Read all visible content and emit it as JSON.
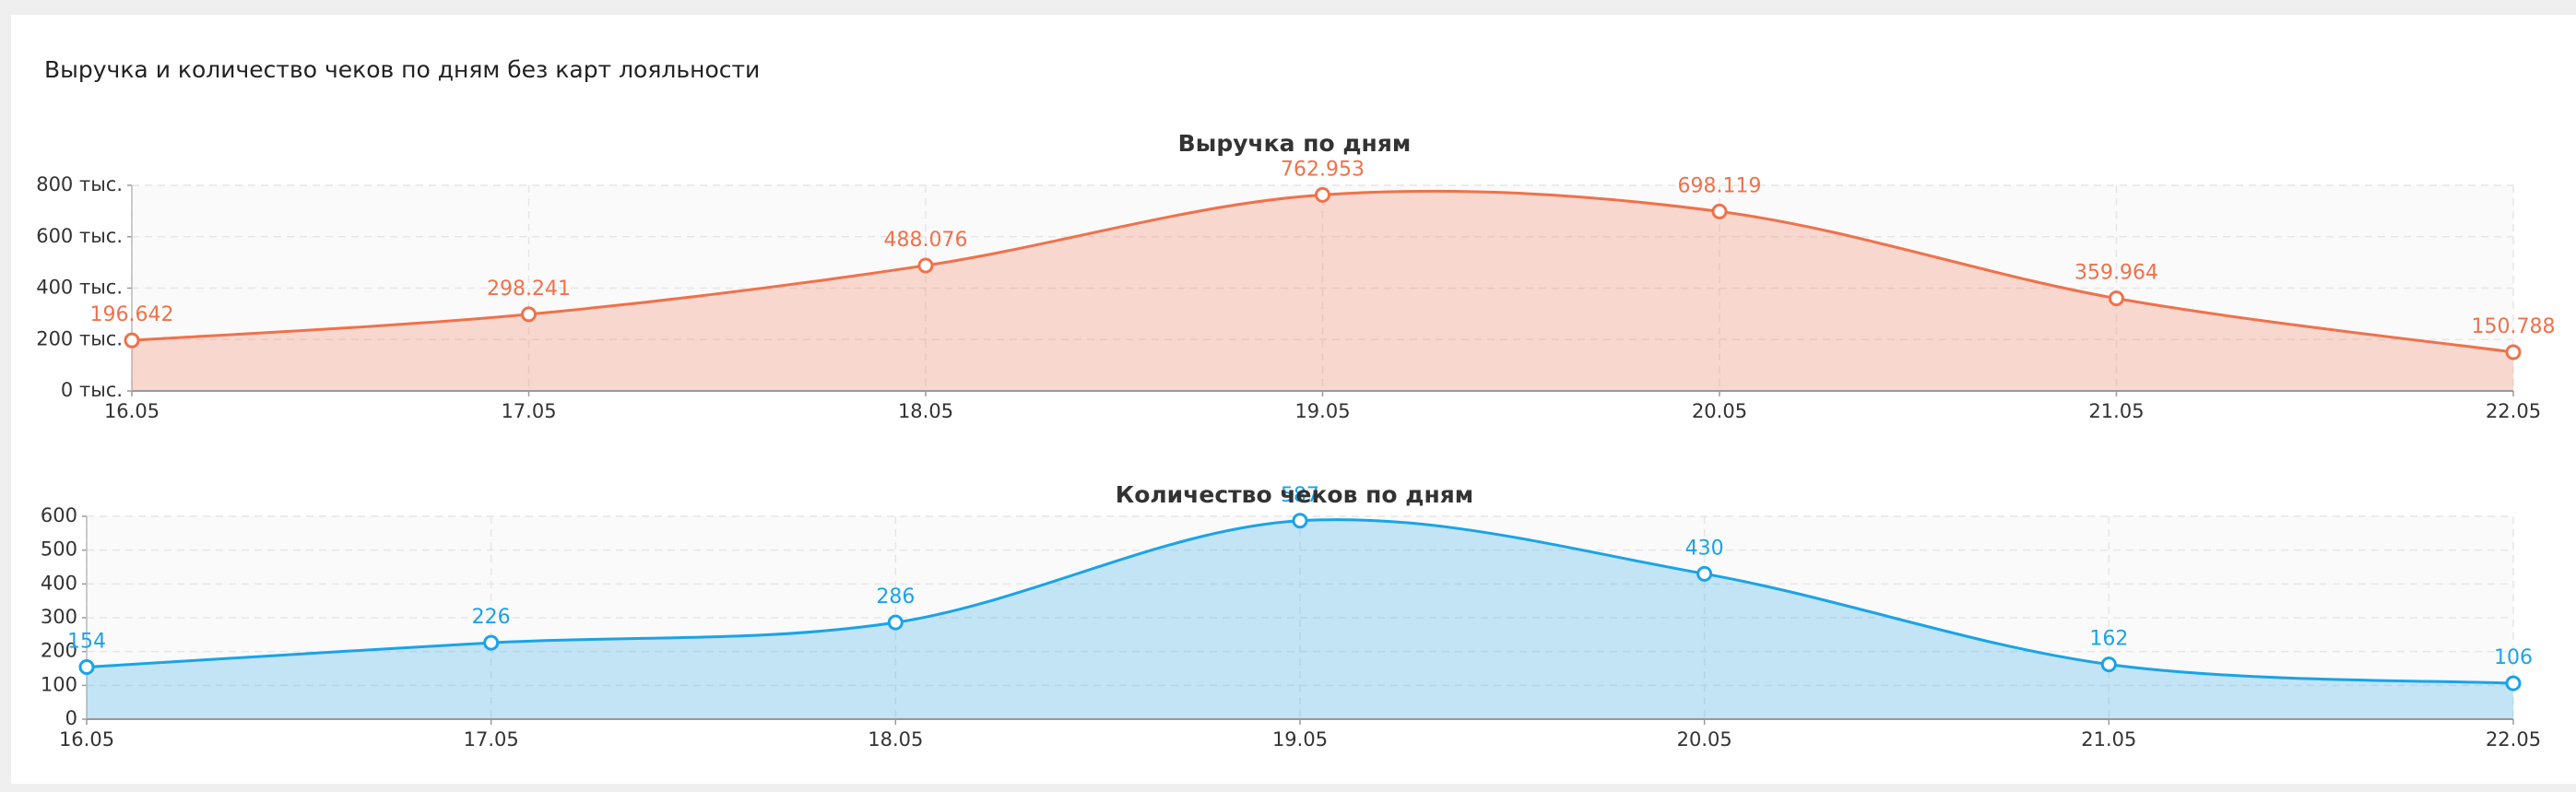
{
  "header": {
    "title": "Выручка и количество чеков по дням без карт лояльности"
  },
  "chart_data": [
    {
      "type": "area",
      "title": "Выручка по дням",
      "categories": [
        "16.05",
        "17.05",
        "18.05",
        "19.05",
        "20.05",
        "21.05",
        "22.05"
      ],
      "series": [
        {
          "name": "Выручка",
          "color": "#f0714b",
          "values": [
            196642,
            298241,
            488076,
            762953,
            698119,
            359964,
            150788
          ],
          "value_labels": [
            "196.642",
            "298.241",
            "488.076",
            "762.953",
            "698.119",
            "359.964",
            "150.788"
          ]
        }
      ],
      "ylim": [
        0,
        800000
      ],
      "yticks": [
        {
          "value": 0,
          "label": "0 тыс."
        },
        {
          "value": 200000,
          "label": "200 тыс."
        },
        {
          "value": 400000,
          "label": "400 тыс."
        },
        {
          "value": 600000,
          "label": "600 тыс."
        },
        {
          "value": 800000,
          "label": "800 тыс."
        }
      ],
      "grid": true
    },
    {
      "type": "area",
      "title": "Количество чеков по дням",
      "categories": [
        "16.05",
        "17.05",
        "18.05",
        "19.05",
        "20.05",
        "21.05",
        "22.05"
      ],
      "series": [
        {
          "name": "Количество чеков",
          "color": "#1aa3e8",
          "values": [
            154,
            226,
            286,
            587,
            430,
            162,
            106
          ]
        }
      ],
      "ylim": [
        0,
        600
      ],
      "yticks": [
        0,
        100,
        200,
        300,
        400,
        500,
        600
      ],
      "grid": true
    }
  ]
}
